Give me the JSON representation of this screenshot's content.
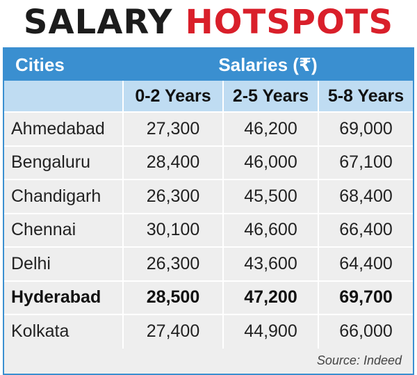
{
  "title": {
    "part1": "SALARY",
    "part2": "HOTSPOTS"
  },
  "colors": {
    "accent_blue": "#3a8fd0",
    "subheader_blue": "#bfdcf2",
    "title_red": "#d91f2a",
    "cell_bg": "#eeeeee"
  },
  "chart_data": {
    "type": "table",
    "header": {
      "cities": "Cities",
      "salaries": "Salaries (₹)"
    },
    "columns": [
      "0-2 Years",
      "2-5 Years",
      "5-8 Years"
    ],
    "rows": [
      {
        "city": "Ahmedabad",
        "values": [
          "27,300",
          "46,200",
          "69,000"
        ],
        "bold": false
      },
      {
        "city": "Bengaluru",
        "values": [
          "28,400",
          "46,000",
          "67,100"
        ],
        "bold": false
      },
      {
        "city": "Chandigarh",
        "values": [
          "26,300",
          "45,500",
          "68,400"
        ],
        "bold": false
      },
      {
        "city": "Chennai",
        "values": [
          "30,100",
          "46,600",
          "66,400"
        ],
        "bold": false
      },
      {
        "city": "Delhi",
        "values": [
          "26,300",
          "43,600",
          "64,400"
        ],
        "bold": false
      },
      {
        "city": "Hyderabad",
        "values": [
          "28,500",
          "47,200",
          "69,700"
        ],
        "bold": true
      },
      {
        "city": "Kolkata",
        "values": [
          "27,400",
          "44,900",
          "66,000"
        ],
        "bold": false
      }
    ],
    "source": "Source: Indeed"
  }
}
